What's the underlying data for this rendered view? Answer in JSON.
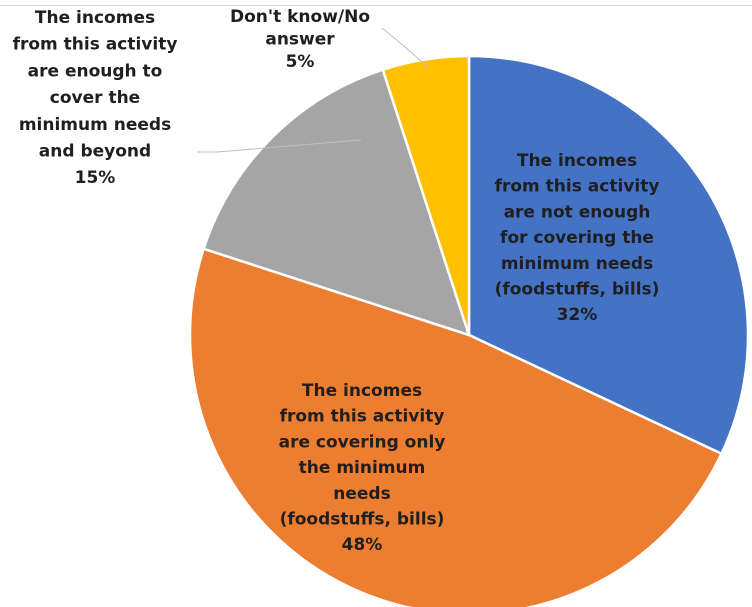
{
  "chart_data": {
    "type": "pie",
    "title": "",
    "slices": [
      {
        "lines": [
          "The incomes",
          "from this activity",
          "are not enough",
          "for covering the",
          "minimum needs",
          "(foodstuffs, bills)"
        ],
        "value": 32,
        "value_label": "32%",
        "color": "#4472C4",
        "label_color": "#1F1F1F"
      },
      {
        "lines": [
          "The incomes",
          "from this activity",
          "are covering only",
          "the minimum",
          "needs",
          "(foodstuffs, bills)"
        ],
        "value": 48,
        "value_label": "48%",
        "color": "#ED7D31",
        "label_color": "#1F1F1F"
      },
      {
        "lines": [
          "The incomes",
          "from this activity",
          "are enough to",
          "cover the",
          "minimum needs",
          "and beyond"
        ],
        "value": 15,
        "value_label": "15%",
        "color": "#A5A5A5",
        "label_color": "#1F1F1F"
      },
      {
        "lines": [
          "Don't know/No",
          "answer"
        ],
        "value": 5,
        "value_label": "5%",
        "color": "#FFC000",
        "label_color": "#1F1F1F"
      }
    ]
  }
}
